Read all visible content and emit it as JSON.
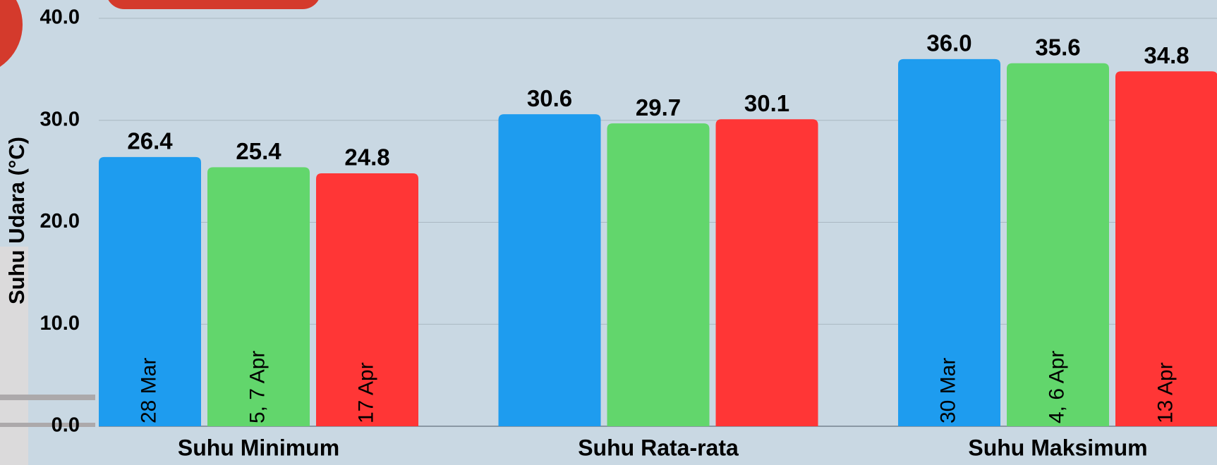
{
  "chart_data": {
    "type": "bar",
    "y_label": "Suhu Udara (°C)",
    "categories": [
      "Suhu Minimum",
      "Suhu Rata-rata",
      "Suhu Maksimum"
    ],
    "series": [
      {
        "color": "#1e9cef",
        "values": [
          26.4,
          30.6,
          36.0
        ],
        "value_labels": [
          "26.4",
          "30.6",
          "36.0"
        ],
        "bar_labels": [
          "28 Mar",
          null,
          "30 Mar"
        ]
      },
      {
        "color": "#62d66c",
        "values": [
          25.4,
          29.7,
          35.6
        ],
        "value_labels": [
          "25.4",
          "29.7",
          "35.6"
        ],
        "bar_labels": [
          "5, 7 Apr",
          null,
          "4, 6 Apr"
        ]
      },
      {
        "color": "#ff3636",
        "values": [
          24.8,
          30.1,
          34.8
        ],
        "value_labels": [
          "24.8",
          "30.1",
          "34.8"
        ],
        "bar_labels": [
          "17 Apr",
          null,
          "13 Apr"
        ]
      }
    ],
    "ylim": [
      0,
      40
    ],
    "yticks": [
      {
        "value": 0,
        "label": "0.0"
      },
      {
        "value": 10,
        "label": "10.0"
      },
      {
        "value": 20,
        "label": "20.0"
      },
      {
        "value": 30,
        "label": "30.0"
      },
      {
        "value": 40,
        "label": "40.0"
      }
    ],
    "grid": true
  }
}
